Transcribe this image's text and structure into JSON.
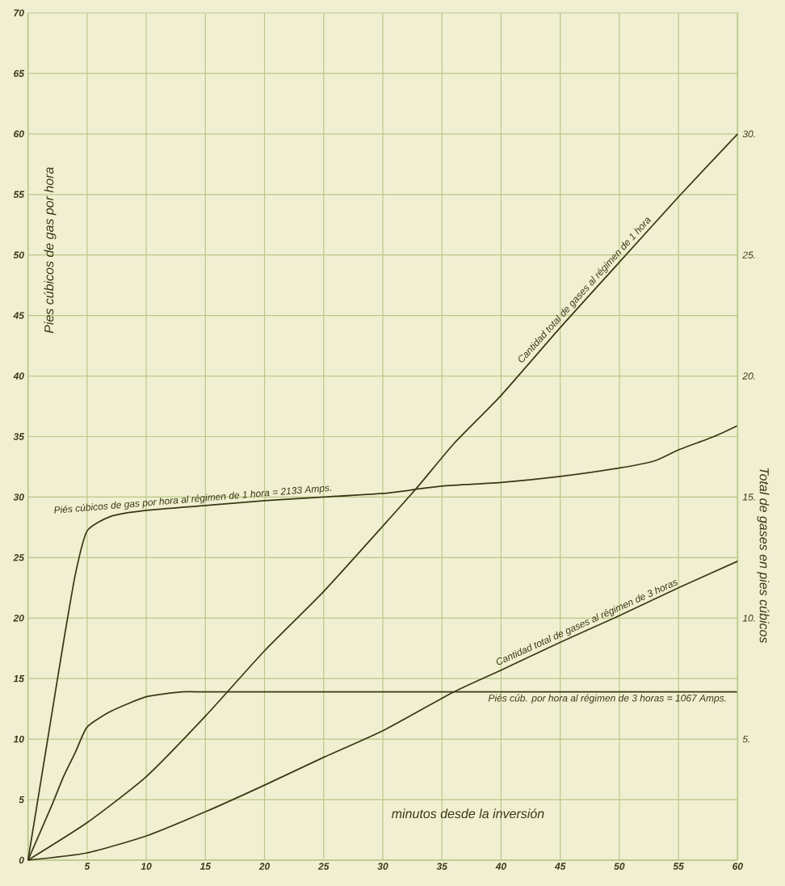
{
  "chart_data": {
    "type": "line",
    "xlabel": "minutos desde la inversión",
    "ylabel": "Pies cúbicos de gas por hora",
    "y2label": "Total de gases en pies cúbicos",
    "xlim": [
      0,
      60
    ],
    "xticks": [
      {
        "value": 0,
        "label": null
      },
      5,
      10,
      15,
      20,
      25,
      30,
      35,
      40,
      45,
      50,
      55,
      60
    ],
    "ylim": [
      0,
      70
    ],
    "yticks": [
      0,
      5,
      10,
      15,
      20,
      25,
      30,
      35,
      40,
      45,
      50,
      55,
      60,
      65,
      70
    ],
    "y2lim": [
      0,
      35
    ],
    "y2ticks": [
      {
        "value": 5,
        "label": "5."
      },
      {
        "value": 10,
        "label": "10."
      },
      {
        "value": 15,
        "label": "15."
      },
      {
        "value": 20,
        "label": "20."
      },
      {
        "value": 25,
        "label": "25."
      },
      {
        "value": 30,
        "label": "30."
      }
    ],
    "grid": true,
    "series": [
      {
        "name": "Piés cúbicos de gas por hora al régimen de 1 hora = 2133 Amps.",
        "color": "#3a3812",
        "x": [
          0,
          1,
          2,
          3,
          4,
          5,
          7,
          10,
          15,
          20,
          25,
          30,
          35,
          40,
          45,
          50,
          53,
          55,
          58,
          60
        ],
        "values": [
          0,
          6,
          12,
          18,
          23.6,
          27.2,
          28.4,
          28.9,
          29.3,
          29.7,
          30.0,
          30.3,
          30.9,
          31.2,
          31.7,
          32.4,
          33.0,
          33.9,
          35.0,
          35.9
        ]
      },
      {
        "name": "Piés cúb. por hora al régimen de 3 horas = 1067 Amps.",
        "color": "#3a3812",
        "x": [
          0,
          2,
          3,
          4,
          5,
          7,
          10,
          13,
          15,
          20,
          30,
          40,
          50,
          60
        ],
        "values": [
          0,
          4.5,
          6.9,
          8.9,
          11.0,
          12.3,
          13.5,
          13.9,
          13.9,
          13.9,
          13.9,
          13.9,
          13.9,
          13.9
        ]
      },
      {
        "name": "Cantidad total de gases al régimen de 1 hora",
        "color": "#3a3812",
        "axis": "y2",
        "x": [
          0,
          5,
          10,
          15,
          20,
          25,
          30,
          33,
          36,
          40,
          45,
          50,
          55,
          60
        ],
        "values": [
          0,
          1.55,
          3.45,
          5.95,
          8.65,
          11.1,
          13.8,
          15.45,
          17.2,
          19.2,
          22.0,
          24.7,
          27.4,
          30.0
        ]
      },
      {
        "name": "Cantidad total de gases al régimen de 3 horas",
        "color": "#3a3812",
        "axis": "y2",
        "x": [
          0,
          5,
          10,
          15,
          20,
          25,
          30,
          36,
          40,
          45,
          50,
          55,
          60
        ],
        "values": [
          0,
          0.3,
          1.0,
          2.0,
          3.1,
          4.25,
          5.35,
          6.95,
          7.85,
          9.0,
          10.1,
          11.25,
          12.35
        ]
      }
    ]
  }
}
